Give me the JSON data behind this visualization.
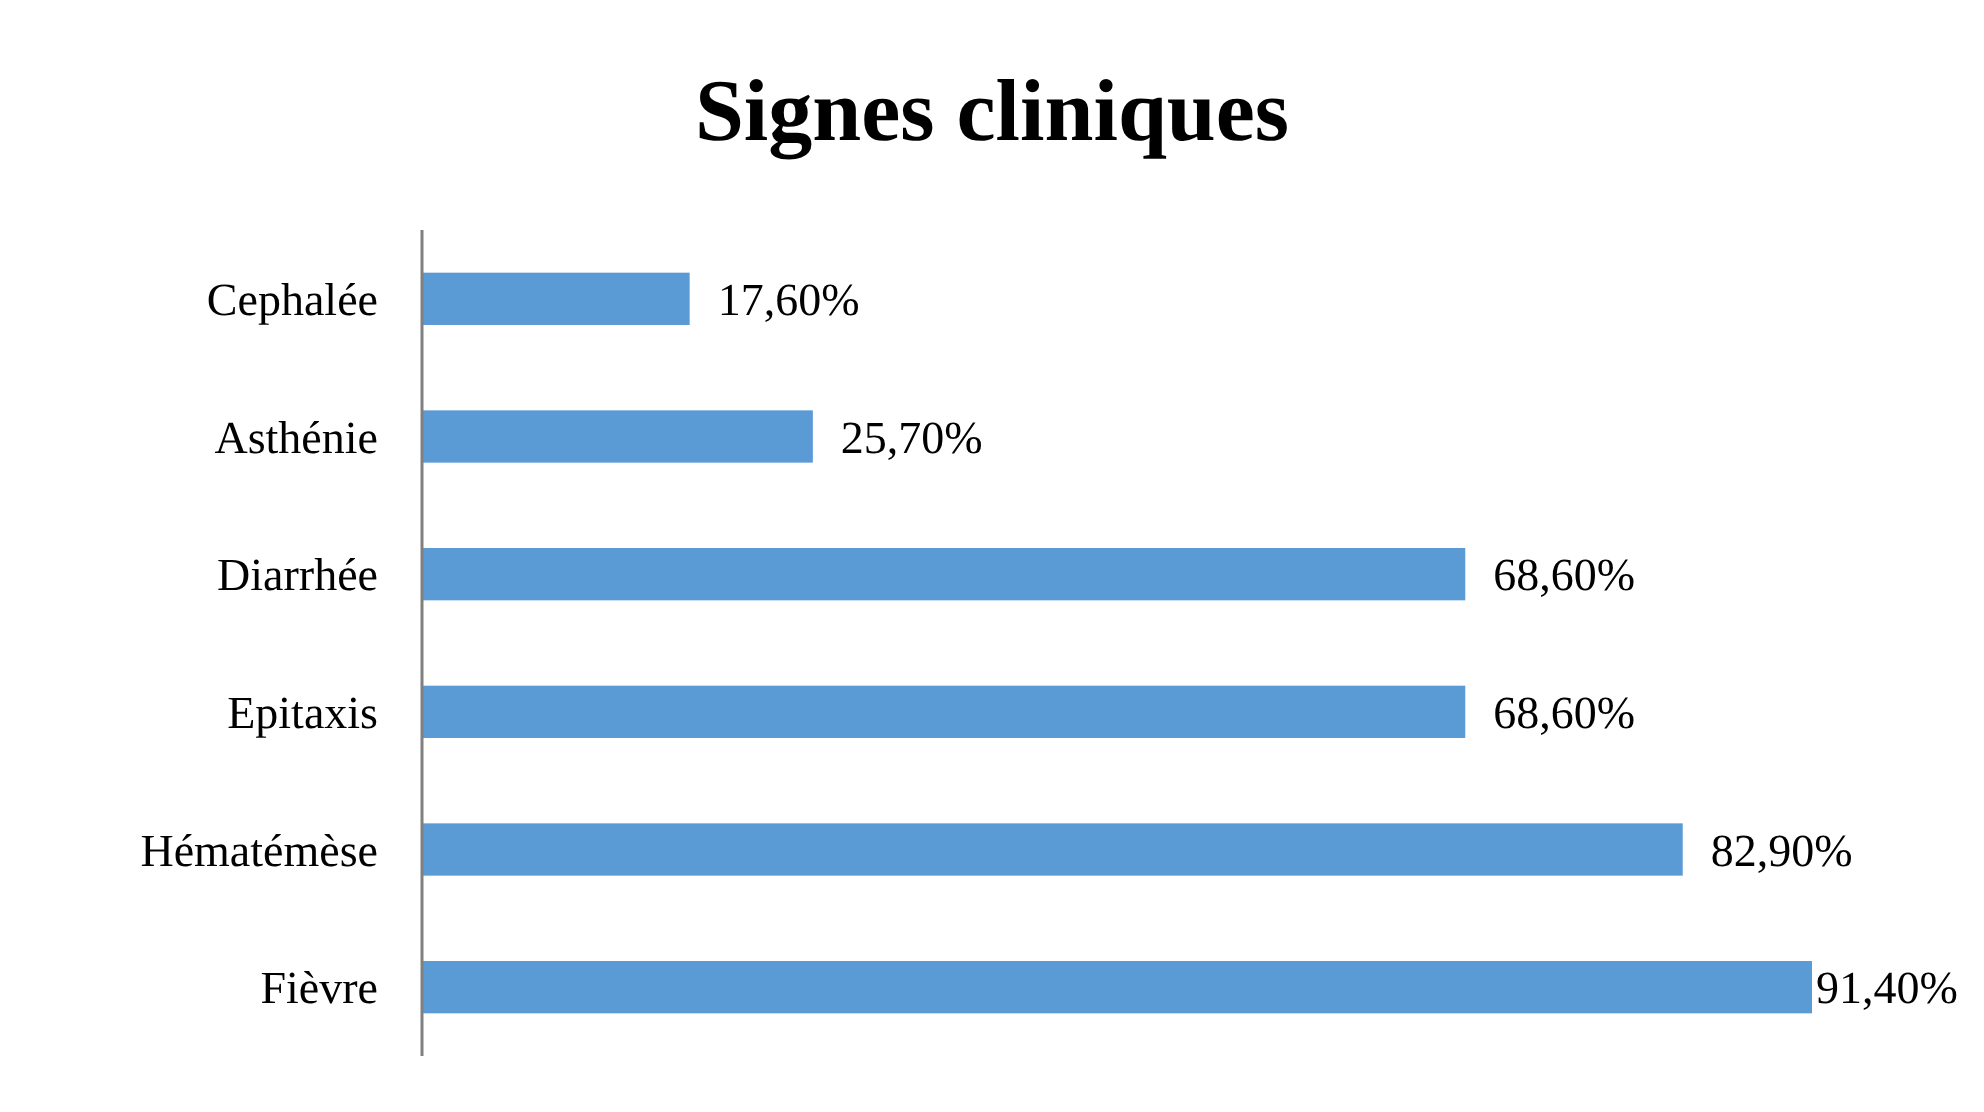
{
  "chart_data": {
    "type": "bar",
    "orientation": "horizontal",
    "title": "Signes cliniques",
    "categories": [
      "Cephalée",
      "Asthénie",
      "Diarrhée",
      "Epitaxis",
      "Hématémèse",
      "Fièvre"
    ],
    "values": [
      17.6,
      25.7,
      68.6,
      68.6,
      82.9,
      91.4
    ],
    "value_labels": [
      "17,60%",
      "25,70%",
      "68,60%",
      "68,60%",
      "82,90%",
      "91,40%"
    ],
    "color": "#5b9bd5"
  }
}
